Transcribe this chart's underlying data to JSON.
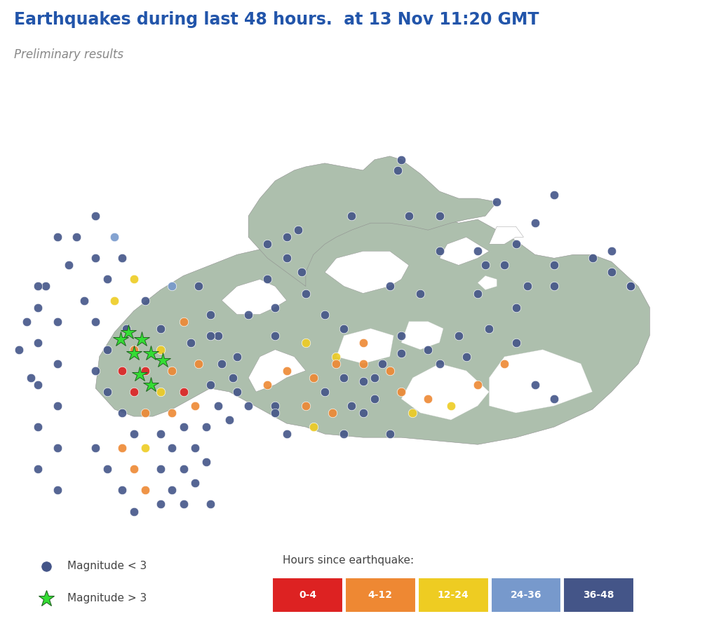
{
  "title": "Earthquakes during last 48 hours.  at 13 Nov 11:20 GMT",
  "subtitle": "Preliminary results",
  "title_color": "#2255aa",
  "subtitle_color": "#888888",
  "bg_color": "#ffffff",
  "land_color": "#adbfad",
  "sea_color": "#ffffff",
  "colors": {
    "0-4": "#dd2222",
    "4-12": "#ee8833",
    "12-24": "#eecc22",
    "24-36": "#7799cc",
    "36-48": "#445588"
  },
  "marker_small_color": "#445588",
  "earthquakes_small": [
    {
      "lon": -28.5,
      "lat": 66.2,
      "age": "36-48"
    },
    {
      "lon": -28.2,
      "lat": 65.8,
      "age": "36-48"
    },
    {
      "lon": -28.8,
      "lat": 65.5,
      "age": "36-48"
    },
    {
      "lon": -29.0,
      "lat": 65.2,
      "age": "36-48"
    },
    {
      "lon": -28.5,
      "lat": 65.0,
      "age": "36-48"
    },
    {
      "lon": -29.0,
      "lat": 64.7,
      "age": "36-48"
    },
    {
      "lon": -28.5,
      "lat": 64.4,
      "age": "36-48"
    },
    {
      "lon": -29.0,
      "lat": 64.1,
      "age": "36-48"
    },
    {
      "lon": -28.5,
      "lat": 63.8,
      "age": "36-48"
    },
    {
      "lon": -29.0,
      "lat": 63.5,
      "age": "36-48"
    },
    {
      "lon": -28.5,
      "lat": 63.2,
      "age": "36-48"
    },
    {
      "lon": -29.0,
      "lat": 62.9,
      "age": "36-48"
    },
    {
      "lon": -28.5,
      "lat": 62.6,
      "age": "36-48"
    },
    {
      "lon": -28.0,
      "lat": 66.2,
      "age": "36-48"
    },
    {
      "lon": -27.5,
      "lat": 66.5,
      "age": "36-48"
    },
    {
      "lon": -27.0,
      "lat": 66.2,
      "age": "24-36"
    },
    {
      "lon": -27.5,
      "lat": 65.9,
      "age": "36-48"
    },
    {
      "lon": -26.8,
      "lat": 65.9,
      "age": "36-48"
    },
    {
      "lon": -27.2,
      "lat": 65.6,
      "age": "36-48"
    },
    {
      "lon": -26.5,
      "lat": 65.6,
      "age": "12-24"
    },
    {
      "lon": -27.8,
      "lat": 65.3,
      "age": "36-48"
    },
    {
      "lon": -27.0,
      "lat": 65.3,
      "age": "12-24"
    },
    {
      "lon": -26.2,
      "lat": 65.3,
      "age": "36-48"
    },
    {
      "lon": -25.5,
      "lat": 65.5,
      "age": "24-36"
    },
    {
      "lon": -24.8,
      "lat": 65.5,
      "age": "36-48"
    },
    {
      "lon": -27.5,
      "lat": 65.0,
      "age": "36-48"
    },
    {
      "lon": -26.7,
      "lat": 64.9,
      "age": "36-48"
    },
    {
      "lon": -25.8,
      "lat": 64.9,
      "age": "36-48"
    },
    {
      "lon": -25.2,
      "lat": 65.0,
      "age": "4-12"
    },
    {
      "lon": -24.5,
      "lat": 65.1,
      "age": "36-48"
    },
    {
      "lon": -27.2,
      "lat": 64.6,
      "age": "36-48"
    },
    {
      "lon": -26.5,
      "lat": 64.6,
      "age": "4-12"
    },
    {
      "lon": -25.8,
      "lat": 64.6,
      "age": "12-24"
    },
    {
      "lon": -25.0,
      "lat": 64.7,
      "age": "36-48"
    },
    {
      "lon": -24.3,
      "lat": 64.8,
      "age": "36-48"
    },
    {
      "lon": -27.5,
      "lat": 64.3,
      "age": "36-48"
    },
    {
      "lon": -26.8,
      "lat": 64.3,
      "age": "0-4"
    },
    {
      "lon": -26.2,
      "lat": 64.3,
      "age": "0-4"
    },
    {
      "lon": -25.5,
      "lat": 64.3,
      "age": "4-12"
    },
    {
      "lon": -24.8,
      "lat": 64.4,
      "age": "4-12"
    },
    {
      "lon": -24.2,
      "lat": 64.4,
      "age": "36-48"
    },
    {
      "lon": -23.8,
      "lat": 64.5,
      "age": "36-48"
    },
    {
      "lon": -27.2,
      "lat": 64.0,
      "age": "36-48"
    },
    {
      "lon": -26.5,
      "lat": 64.0,
      "age": "0-4"
    },
    {
      "lon": -25.8,
      "lat": 64.0,
      "age": "12-24"
    },
    {
      "lon": -25.2,
      "lat": 64.0,
      "age": "0-4"
    },
    {
      "lon": -24.5,
      "lat": 64.1,
      "age": "36-48"
    },
    {
      "lon": -23.9,
      "lat": 64.2,
      "age": "36-48"
    },
    {
      "lon": -26.8,
      "lat": 63.7,
      "age": "36-48"
    },
    {
      "lon": -26.2,
      "lat": 63.7,
      "age": "4-12"
    },
    {
      "lon": -25.5,
      "lat": 63.7,
      "age": "4-12"
    },
    {
      "lon": -24.9,
      "lat": 63.8,
      "age": "4-12"
    },
    {
      "lon": -24.3,
      "lat": 63.8,
      "age": "36-48"
    },
    {
      "lon": -26.5,
      "lat": 63.4,
      "age": "36-48"
    },
    {
      "lon": -25.8,
      "lat": 63.4,
      "age": "36-48"
    },
    {
      "lon": -25.2,
      "lat": 63.5,
      "age": "36-48"
    },
    {
      "lon": -24.6,
      "lat": 63.5,
      "age": "36-48"
    },
    {
      "lon": -24.0,
      "lat": 63.6,
      "age": "36-48"
    },
    {
      "lon": -27.5,
      "lat": 63.2,
      "age": "36-48"
    },
    {
      "lon": -26.8,
      "lat": 63.2,
      "age": "4-12"
    },
    {
      "lon": -26.2,
      "lat": 63.2,
      "age": "12-24"
    },
    {
      "lon": -25.5,
      "lat": 63.2,
      "age": "36-48"
    },
    {
      "lon": -24.9,
      "lat": 63.2,
      "age": "36-48"
    },
    {
      "lon": -27.2,
      "lat": 62.9,
      "age": "36-48"
    },
    {
      "lon": -26.5,
      "lat": 62.9,
      "age": "4-12"
    },
    {
      "lon": -25.8,
      "lat": 62.9,
      "age": "36-48"
    },
    {
      "lon": -25.2,
      "lat": 62.9,
      "age": "36-48"
    },
    {
      "lon": -24.6,
      "lat": 63.0,
      "age": "36-48"
    },
    {
      "lon": -26.8,
      "lat": 62.6,
      "age": "36-48"
    },
    {
      "lon": -26.2,
      "lat": 62.6,
      "age": "4-12"
    },
    {
      "lon": -25.5,
      "lat": 62.6,
      "age": "36-48"
    },
    {
      "lon": -24.9,
      "lat": 62.7,
      "age": "36-48"
    },
    {
      "lon": -26.5,
      "lat": 62.3,
      "age": "36-48"
    },
    {
      "lon": -25.8,
      "lat": 62.4,
      "age": "36-48"
    },
    {
      "lon": -25.2,
      "lat": 62.4,
      "age": "36-48"
    },
    {
      "lon": -24.5,
      "lat": 62.4,
      "age": "36-48"
    },
    {
      "lon": -23.5,
      "lat": 63.8,
      "age": "36-48"
    },
    {
      "lon": -22.8,
      "lat": 63.8,
      "age": "36-48"
    },
    {
      "lon": -22.0,
      "lat": 63.8,
      "age": "4-12"
    },
    {
      "lon": -21.3,
      "lat": 63.7,
      "age": "4-12"
    },
    {
      "lon": -20.8,
      "lat": 63.8,
      "age": "36-48"
    },
    {
      "lon": -20.2,
      "lat": 63.9,
      "age": "36-48"
    },
    {
      "lon": -19.5,
      "lat": 64.0,
      "age": "4-12"
    },
    {
      "lon": -18.8,
      "lat": 63.9,
      "age": "4-12"
    },
    {
      "lon": -18.2,
      "lat": 63.8,
      "age": "12-24"
    },
    {
      "lon": -17.5,
      "lat": 64.1,
      "age": "4-12"
    },
    {
      "lon": -16.8,
      "lat": 64.4,
      "age": "4-12"
    },
    {
      "lon": -16.0,
      "lat": 64.1,
      "age": "36-48"
    },
    {
      "lon": -15.5,
      "lat": 63.9,
      "age": "36-48"
    },
    {
      "lon": -21.8,
      "lat": 63.5,
      "age": "12-24"
    },
    {
      "lon": -19.2,
      "lat": 63.7,
      "age": "12-24"
    },
    {
      "lon": -22.5,
      "lat": 63.4,
      "age": "36-48"
    },
    {
      "lon": -21.0,
      "lat": 63.4,
      "age": "36-48"
    },
    {
      "lon": -19.8,
      "lat": 63.4,
      "age": "36-48"
    },
    {
      "lon": -24.5,
      "lat": 64.8,
      "age": "36-48"
    },
    {
      "lon": -23.5,
      "lat": 65.1,
      "age": "36-48"
    },
    {
      "lon": -22.8,
      "lat": 65.2,
      "age": "36-48"
    },
    {
      "lon": -22.0,
      "lat": 65.4,
      "age": "36-48"
    },
    {
      "lon": -15.5,
      "lat": 65.5,
      "age": "36-48"
    },
    {
      "lon": -14.5,
      "lat": 65.9,
      "age": "36-48"
    },
    {
      "lon": -14.0,
      "lat": 65.7,
      "age": "36-48"
    },
    {
      "lon": -13.5,
      "lat": 65.5,
      "age": "36-48"
    },
    {
      "lon": -22.0,
      "lat": 64.7,
      "age": "12-24"
    },
    {
      "lon": -21.2,
      "lat": 64.5,
      "age": "12-24"
    },
    {
      "lon": -20.5,
      "lat": 64.4,
      "age": "4-12"
    },
    {
      "lon": -19.8,
      "lat": 64.3,
      "age": "4-12"
    },
    {
      "lon": -18.8,
      "lat": 64.6,
      "age": "36-48"
    },
    {
      "lon": -18.0,
      "lat": 64.8,
      "age": "36-48"
    },
    {
      "lon": -17.2,
      "lat": 64.9,
      "age": "36-48"
    },
    {
      "lon": -23.8,
      "lat": 64.0,
      "age": "36-48"
    },
    {
      "lon": -23.0,
      "lat": 64.1,
      "age": "4-12"
    },
    {
      "lon": -22.5,
      "lat": 64.3,
      "age": "4-12"
    },
    {
      "lon": -21.8,
      "lat": 64.2,
      "age": "4-12"
    },
    {
      "lon": -21.2,
      "lat": 64.4,
      "age": "4-12"
    },
    {
      "lon": -21.0,
      "lat": 64.9,
      "age": "36-48"
    },
    {
      "lon": -19.5,
      "lat": 64.8,
      "age": "36-48"
    },
    {
      "lon": -17.5,
      "lat": 65.4,
      "age": "36-48"
    },
    {
      "lon": -16.5,
      "lat": 65.2,
      "age": "36-48"
    },
    {
      "lon": -22.8,
      "lat": 63.7,
      "age": "36-48"
    },
    {
      "lon": -20.5,
      "lat": 63.7,
      "age": "36-48"
    },
    {
      "lon": -19.5,
      "lat": 67.3,
      "age": "36-48"
    },
    {
      "lon": -18.5,
      "lat": 66.0,
      "age": "36-48"
    },
    {
      "lon": -16.5,
      "lat": 64.7,
      "age": "36-48"
    },
    {
      "lon": -22.5,
      "lat": 65.9,
      "age": "36-48"
    },
    {
      "lon": -20.8,
      "lat": 66.5,
      "age": "36-48"
    },
    {
      "lon": -17.0,
      "lat": 66.7,
      "age": "36-48"
    },
    {
      "lon": -16.0,
      "lat": 66.4,
      "age": "36-48"
    },
    {
      "lon": -15.5,
      "lat": 66.8,
      "age": "36-48"
    },
    {
      "lon": -21.0,
      "lat": 64.2,
      "age": "36-48"
    },
    {
      "lon": -20.2,
      "lat": 64.2,
      "age": "36-48"
    },
    {
      "lon": -19.0,
      "lat": 65.4,
      "age": "36-48"
    },
    {
      "lon": -18.5,
      "lat": 64.4,
      "age": "36-48"
    },
    {
      "lon": -17.8,
      "lat": 64.5,
      "age": "36-48"
    },
    {
      "lon": -19.8,
      "lat": 65.5,
      "age": "36-48"
    },
    {
      "lon": -23.0,
      "lat": 66.1,
      "age": "36-48"
    },
    {
      "lon": -22.2,
      "lat": 66.3,
      "age": "36-48"
    }
  ],
  "earthquakes_large": [
    {
      "lon": -26.3,
      "lat": 64.75,
      "age": "0-4"
    },
    {
      "lon": -26.65,
      "lat": 64.85,
      "age": "0-4"
    },
    {
      "lon": -26.05,
      "lat": 64.55,
      "age": "0-4"
    },
    {
      "lon": -26.5,
      "lat": 64.55,
      "age": "0-4"
    },
    {
      "lon": -26.85,
      "lat": 64.75,
      "age": "0-4"
    },
    {
      "lon": -25.75,
      "lat": 64.45,
      "age": "0-4"
    },
    {
      "lon": -26.35,
      "lat": 64.25,
      "age": "0-4"
    },
    {
      "lon": -26.05,
      "lat": 64.1,
      "age": "0-4"
    }
  ],
  "isolated_small": [
    {
      "lon": -19.6,
      "lat": 67.15,
      "age": "36-48"
    },
    {
      "lon": -19.3,
      "lat": 66.5,
      "age": "36-48"
    },
    {
      "lon": -16.5,
      "lat": 66.1,
      "age": "36-48"
    },
    {
      "lon": -17.5,
      "lat": 66.0,
      "age": "36-48"
    },
    {
      "lon": -22.5,
      "lat": 66.2,
      "age": "36-48"
    },
    {
      "lon": -14.0,
      "lat": 66.0,
      "age": "36-48"
    },
    {
      "lon": -13.5,
      "lat": 65.5,
      "age": "36-48"
    },
    {
      "lon": -29.0,
      "lat": 65.5,
      "age": "36-48"
    },
    {
      "lon": -29.3,
      "lat": 65.0,
      "age": "36-48"
    },
    {
      "lon": -29.5,
      "lat": 64.6,
      "age": "36-48"
    },
    {
      "lon": -29.2,
      "lat": 64.2,
      "age": "36-48"
    },
    {
      "lon": -20.5,
      "lat": 64.7,
      "age": "4-12"
    },
    {
      "lon": -22.8,
      "lat": 64.8,
      "age": "36-48"
    },
    {
      "lon": -22.1,
      "lat": 65.7,
      "age": "36-48"
    }
  ],
  "scattered_inland": [
    {
      "lon": -21.5,
      "lat": 64.0,
      "age": "36-48"
    },
    {
      "lon": -20.5,
      "lat": 64.15,
      "age": "36-48"
    },
    {
      "lon": -20.0,
      "lat": 64.4,
      "age": "36-48"
    },
    {
      "lon": -19.5,
      "lat": 64.55,
      "age": "36-48"
    },
    {
      "lon": -21.5,
      "lat": 65.1,
      "age": "36-48"
    },
    {
      "lon": -23.0,
      "lat": 65.6,
      "age": "36-48"
    },
    {
      "lon": -15.5,
      "lat": 65.8,
      "age": "36-48"
    },
    {
      "lon": -16.2,
      "lat": 65.5,
      "age": "36-48"
    },
    {
      "lon": -16.8,
      "lat": 65.8,
      "age": "36-48"
    },
    {
      "lon": -17.3,
      "lat": 65.8,
      "age": "36-48"
    },
    {
      "lon": -18.5,
      "lat": 66.5,
      "age": "36-48"
    }
  ]
}
